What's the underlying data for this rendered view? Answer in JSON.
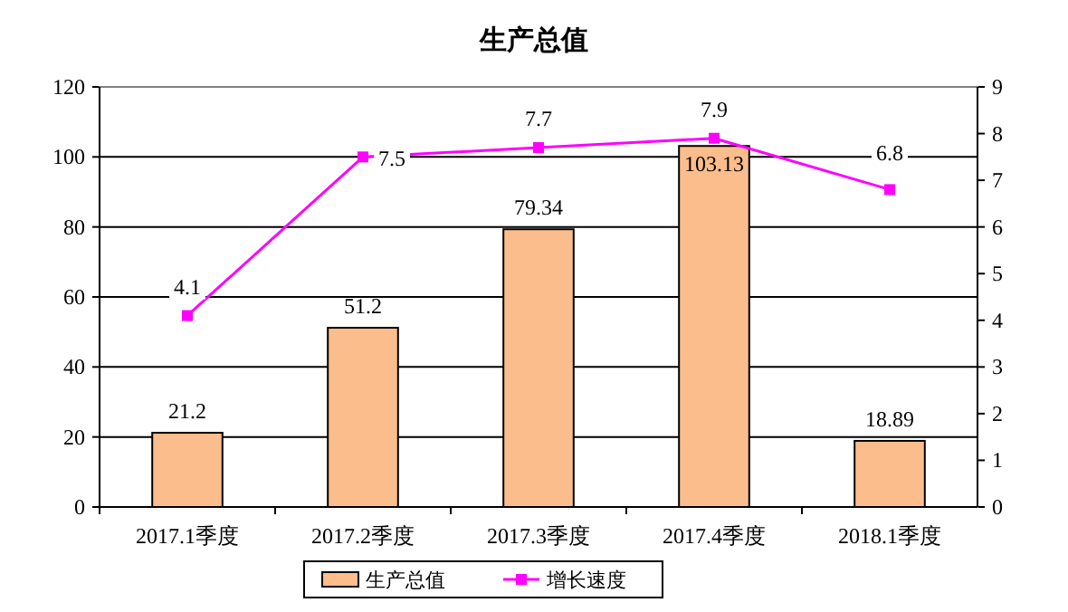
{
  "chart_data": {
    "type": "bar",
    "title": "生产总值",
    "categories": [
      "2017.1季度",
      "2017.2季度",
      "2017.3季度",
      "2017.4季度",
      "2018.1季度"
    ],
    "series": [
      {
        "name": "生产总值",
        "color": "#fbbd8c",
        "values": [
          21.2,
          51.2,
          79.34,
          103.13,
          18.89
        ]
      },
      {
        "name": "增长速度",
        "type": "line",
        "axis": "y2",
        "color": "#ff00ff",
        "values": [
          4.1,
          7.5,
          7.7,
          7.9,
          6.8
        ]
      }
    ],
    "ylim": [
      0,
      120
    ],
    "yticks": [
      0,
      20,
      40,
      60,
      80,
      100,
      120
    ],
    "y2lim": [
      0,
      9
    ],
    "y2ticks": [
      0,
      1,
      2,
      3,
      4,
      5,
      6,
      7,
      8,
      9
    ],
    "grid": "y",
    "legend": "bottom",
    "marker": "square",
    "line_style": "solid",
    "data_labels": true
  }
}
